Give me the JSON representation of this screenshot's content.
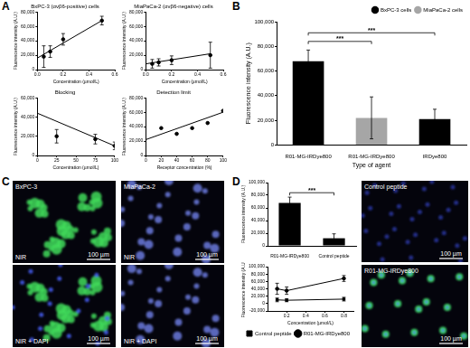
{
  "figure": {
    "panel_labels": [
      "A",
      "B",
      "C",
      "D"
    ],
    "images": {
      "C": [
        {
          "title": "BxPC-3",
          "label": "NIR",
          "scale_bar": "100 µm"
        },
        {
          "label": "NIR + DAPI",
          "scale_bar": "100 µm"
        },
        {
          "title": "MiaPaCa-2",
          "label": "NIR",
          "scale_bar": "100 µm"
        },
        {
          "label": "NIR + DAPI",
          "scale_bar": "100 µm"
        }
      ],
      "D": [
        {
          "label": "Control peptide",
          "scale_bar": "100 µm"
        },
        {
          "label": "R01-MG-IRDye800",
          "scale_bar": "100 µm"
        }
      ]
    }
  },
  "chart_data": [
    {
      "type": "scatter",
      "title": "BxPC-3 (αvβ6-positive) cells",
      "x_label": "Concentration (µmol/L)",
      "y_label": "Fluorescence intensity (A.U.)",
      "xlim": [
        0,
        0.6
      ],
      "xticks": [
        {
          "value": 0,
          "label": "0.0"
        },
        0.2,
        0.4,
        0.6
      ],
      "ylim": [
        0,
        80000
      ],
      "yticks": [
        0,
        {
          "value": 20000,
          "label": "20,000"
        },
        {
          "value": 40000,
          "label": "40,000"
        },
        {
          "value": 60000,
          "label": "60,000"
        },
        {
          "value": 80000,
          "label": "80,000"
        }
      ],
      "grid": false,
      "series": [
        {
          "type": "scatter",
          "marker": "circle",
          "color": "#000000",
          "x": [
            0.05,
            0.1,
            0.2,
            0.5
          ],
          "values": [
            18000,
            25000,
            42000,
            68000
          ],
          "errors": [
            15000,
            8000,
            8000,
            6000
          ]
        },
        {
          "type": "line",
          "marker": "none",
          "color": "#000000",
          "x": [
            0,
            0.5
          ],
          "values": [
            16000,
            68000
          ]
        }
      ]
    },
    {
      "type": "scatter",
      "title": "MiaPaCa-2 (αvβ6-negative) cells",
      "x_label": "Concentration (µmol/L)",
      "y_label": "Fluorescence intensity (A.U.)",
      "xlim": [
        0,
        0.6
      ],
      "xticks": [
        {
          "value": 0,
          "label": "0.0"
        },
        0.2,
        0.4,
        0.6
      ],
      "ylim": [
        0,
        80000
      ],
      "yticks": [
        0,
        {
          "value": 20000,
          "label": "20,000"
        },
        {
          "value": 40000,
          "label": "40,000"
        },
        {
          "value": 60000,
          "label": "60,000"
        },
        {
          "value": 80000,
          "label": "80,000"
        }
      ],
      "grid": false,
      "series": [
        {
          "type": "scatter",
          "marker": "circle",
          "color": "#000000",
          "x": [
            0.05,
            0.1,
            0.2,
            0.5
          ],
          "values": [
            8000,
            10000,
            13000,
            20000
          ],
          "errors": [
            6000,
            5000,
            6000,
            18000
          ]
        },
        {
          "type": "line",
          "marker": "none",
          "color": "#000000",
          "x": [
            0,
            0.5
          ],
          "values": [
            8000,
            22000
          ]
        }
      ]
    },
    {
      "type": "scatter",
      "title": "Blocking",
      "x_label": "Concentration (µmol/L)",
      "y_label": "Fluorescence intensity (A.U.)",
      "xlim": [
        0,
        100
      ],
      "xticks": [
        0,
        25,
        50,
        75,
        100
      ],
      "ylim": [
        0,
        60000
      ],
      "yticks": [
        0,
        {
          "value": 20000,
          "label": "20,000"
        },
        {
          "value": 40000,
          "label": "40,000"
        },
        {
          "value": 60000,
          "label": "60,000"
        }
      ],
      "grid": false,
      "series": [
        {
          "type": "scatter",
          "marker": "circle",
          "color": "#000000",
          "x": [
            25,
            75,
            100
          ],
          "values": [
            20000,
            17000,
            10000
          ],
          "errors": [
            7000,
            5000,
            4000
          ]
        },
        {
          "type": "line",
          "marker": "none",
          "color": "#000000",
          "x": [
            0,
            100
          ],
          "values": [
            44000,
            10000
          ]
        }
      ]
    },
    {
      "type": "scatter",
      "title": "Detection limit",
      "x_label": "Receptor concentration (%)",
      "y_label": "Fluorescence intensity (A.U.)",
      "xlim": [
        0,
        100
      ],
      "xticks": [
        0,
        20,
        40,
        60,
        80,
        100
      ],
      "ylim": [
        0,
        80000
      ],
      "yticks": [
        0,
        {
          "value": 20000,
          "label": "20,000"
        },
        {
          "value": 40000,
          "label": "40,000"
        },
        {
          "value": 60000,
          "label": "60,000"
        },
        {
          "value": 80000,
          "label": "80,000"
        }
      ],
      "grid": false,
      "series": [
        {
          "type": "scatter",
          "marker": "circle",
          "color": "#000000",
          "x": [
            20,
            40,
            60,
            80,
            100
          ],
          "values": [
            38000,
            30000,
            38000,
            45000,
            62000
          ]
        },
        {
          "type": "line",
          "marker": "none",
          "color": "#000000",
          "x": [
            0,
            100
          ],
          "values": [
            22000,
            60000
          ]
        }
      ]
    },
    {
      "type": "bar",
      "x_label": "Type of agent",
      "y_label": "Fluorescence intensity (A.U.)",
      "categories": [
        "R01-MG-IRDye800",
        "R01-MG-IRDye800",
        "IRDye800"
      ],
      "ylim": [
        0,
        100000
      ],
      "yticks": [
        0,
        {
          "value": 20000,
          "label": "20,000"
        },
        {
          "value": 40000,
          "label": "40,000"
        },
        {
          "value": 60000,
          "label": "60,000"
        },
        {
          "value": 80000,
          "label": "80,000"
        },
        {
          "value": 100000,
          "label": "100,000"
        }
      ],
      "grid": false,
      "legend": "top-right",
      "series": [
        {
          "name": "BxPC-3 cells",
          "color": "#000000",
          "values": [
            68000,
            null,
            21000
          ],
          "errors": [
            9000,
            null,
            8000
          ]
        },
        {
          "name": "MiaPaCa-2 cells",
          "color": "#a6a6a6",
          "values": [
            null,
            22000,
            null
          ],
          "errors": [
            null,
            17000,
            null
          ]
        }
      ],
      "annotations": [
        {
          "text": "***",
          "from": 0,
          "to": 1
        },
        {
          "text": "***",
          "from": 0,
          "to": 2
        }
      ]
    },
    {
      "type": "bar",
      "y_label": "Fluorescence intensity (A.U.)",
      "categories": [
        "R01-MG-IRDye800",
        "Control peptide"
      ],
      "ylim": [
        0,
        100000
      ],
      "yticks": [
        0,
        {
          "value": 20000,
          "label": "20,000"
        },
        {
          "value": 40000,
          "label": "40,000"
        },
        {
          "value": 60000,
          "label": "60,000"
        },
        {
          "value": 80000,
          "label": "80,000"
        },
        {
          "value": 100000,
          "label": "100,000"
        }
      ],
      "grid": false,
      "series": [
        {
          "color": "#000000",
          "values": [
            68000,
            12000
          ],
          "errors": [
            9000,
            7000
          ]
        }
      ],
      "annotations": [
        {
          "text": "***",
          "from": 0,
          "to": 1
        }
      ]
    },
    {
      "type": "line",
      "x_label": "Concentration (µmol/L)",
      "y_label": "Fluorescence intensity (A.U.)",
      "xlim": [
        0,
        0.9
      ],
      "xticks": [
        0.2,
        0.4,
        0.6,
        0.8
      ],
      "ylim": [
        -20000,
        100000
      ],
      "yticks": [
        {
          "value": -20000,
          "label": "-20,000"
        },
        0,
        {
          "value": 20000,
          "label": "20,000"
        },
        {
          "value": 40000,
          "label": "40,000"
        },
        {
          "value": 60000,
          "label": "60,000"
        },
        {
          "value": 80000,
          "label": "80,000"
        },
        {
          "value": 100000,
          "label": "100,000"
        }
      ],
      "grid": false,
      "legend": "bottom",
      "series": [
        {
          "name": "Control peptide",
          "type": "line",
          "marker": "square",
          "color": "#000000",
          "x": [
            0.1,
            0.2,
            0.8
          ],
          "values": [
            10000,
            9000,
            12000
          ],
          "errors": [
            5000,
            4000,
            5000
          ]
        },
        {
          "name": "R01-MG-IRDye800",
          "type": "line",
          "marker": "circle",
          "color": "#000000",
          "x": [
            0.1,
            0.2,
            0.8
          ],
          "values": [
            40000,
            35000,
            68000
          ],
          "errors": [
            15000,
            10000,
            8000
          ]
        }
      ]
    }
  ]
}
